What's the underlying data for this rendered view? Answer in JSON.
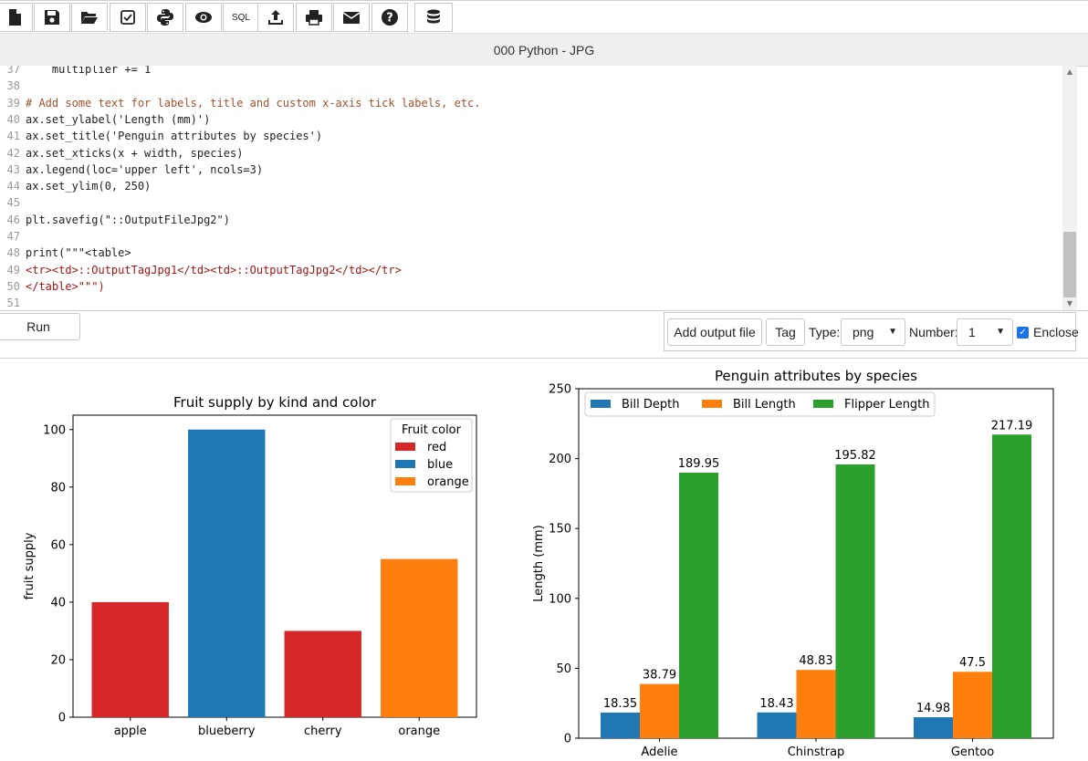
{
  "toolbar": {
    "buttons": [
      {
        "name": "new-file",
        "icon": "file-icon"
      },
      {
        "name": "save",
        "icon": "save-icon"
      },
      {
        "name": "open",
        "icon": "folder-open-icon"
      },
      {
        "name": "check",
        "icon": "checkbox-icon"
      },
      {
        "name": "python",
        "icon": "python-icon"
      },
      {
        "name": "preview",
        "icon": "eye-icon"
      },
      {
        "name": "sql",
        "label": "SQL"
      },
      {
        "name": "upload",
        "icon": "upload-icon"
      },
      {
        "name": "print",
        "icon": "print-icon"
      },
      {
        "name": "email",
        "icon": "envelope-icon"
      },
      {
        "name": "help",
        "icon": "help-icon"
      },
      {
        "name": "database",
        "icon": "database-icon"
      }
    ]
  },
  "title": "000 Python - JPG",
  "editor": {
    "lines": [
      {
        "n": "37",
        "text": "    multiplier += 1"
      },
      {
        "n": "38",
        "text": ""
      },
      {
        "n": "39",
        "text": "# Add some text for labels, title and custom x-axis tick labels, etc."
      },
      {
        "n": "40",
        "text": "ax.set_ylabel('Length (mm)')"
      },
      {
        "n": "41",
        "text": "ax.set_title('Penguin attributes by species')"
      },
      {
        "n": "42",
        "text": "ax.set_xticks(x + width, species)"
      },
      {
        "n": "43",
        "text": "ax.legend(loc='upper left', ncols=3)"
      },
      {
        "n": "44",
        "text": "ax.set_ylim(0, 250)"
      },
      {
        "n": "45",
        "text": ""
      },
      {
        "n": "46",
        "text": "plt.savefig(\"::OutputFileJpg2\")"
      },
      {
        "n": "47",
        "text": ""
      },
      {
        "n": "48",
        "text": "print(\"\"\"<table>"
      },
      {
        "n": "49",
        "text": "<tr><td>::OutputTagJpg1</td><td>::OutputTagJpg2</td></tr>"
      },
      {
        "n": "50",
        "text": "</table>\"\"\")"
      },
      {
        "n": "51",
        "text": ""
      }
    ]
  },
  "controls": {
    "run_label": "Run",
    "add_output_label": "Add output file",
    "tag_label": "Tag",
    "type_label": "Type:",
    "type_value": "png",
    "number_label": "Number:",
    "number_value": "1",
    "enclose_label": "Enclose",
    "enclose_checked": true
  },
  "colors": {
    "red": "#d62728",
    "blue": "#1f77b4",
    "orange": "#ff7f0e",
    "green": "#2ca02c"
  },
  "chart_data": [
    {
      "type": "bar",
      "title": "Fruit supply by kind and color",
      "ylabel": "fruit supply",
      "xlabel": "",
      "categories": [
        "apple",
        "blueberry",
        "cherry",
        "orange"
      ],
      "values": [
        40,
        100,
        30,
        55
      ],
      "bar_colors": [
        "#d62728",
        "#1f77b4",
        "#d62728",
        "#ff7f0e"
      ],
      "ylim": [
        0,
        105
      ],
      "yticks": [
        0,
        20,
        40,
        60,
        80,
        100
      ],
      "legend": {
        "title": "Fruit color",
        "placement": "top-right",
        "entries": [
          {
            "label": "red",
            "color": "#d62728"
          },
          {
            "label": "blue",
            "color": "#1f77b4"
          },
          {
            "label": "orange",
            "color": "#ff7f0e"
          }
        ]
      }
    },
    {
      "type": "bar",
      "title": "Penguin attributes by species",
      "ylabel": "Length (mm)",
      "xlabel": "",
      "categories": [
        "Adelie",
        "Chinstrap",
        "Gentoo"
      ],
      "series": [
        {
          "name": "Bill Depth",
          "color": "#1f77b4",
          "values": [
            18.35,
            18.43,
            14.98
          ],
          "labels": [
            "18.35",
            "18.43",
            "14.98"
          ]
        },
        {
          "name": "Bill Length",
          "color": "#ff7f0e",
          "values": [
            38.79,
            48.83,
            47.5
          ],
          "labels": [
            "38.79",
            "48.83",
            "47.5"
          ]
        },
        {
          "name": "Flipper Length",
          "color": "#2ca02c",
          "values": [
            189.95,
            195.82,
            217.19
          ],
          "labels": [
            "189.95",
            "195.82",
            "217.19"
          ]
        }
      ],
      "ylim": [
        0,
        250
      ],
      "yticks": [
        0,
        50,
        100,
        150,
        200,
        250
      ],
      "legend": {
        "placement": "upper-left",
        "ncols": 3
      }
    }
  ]
}
